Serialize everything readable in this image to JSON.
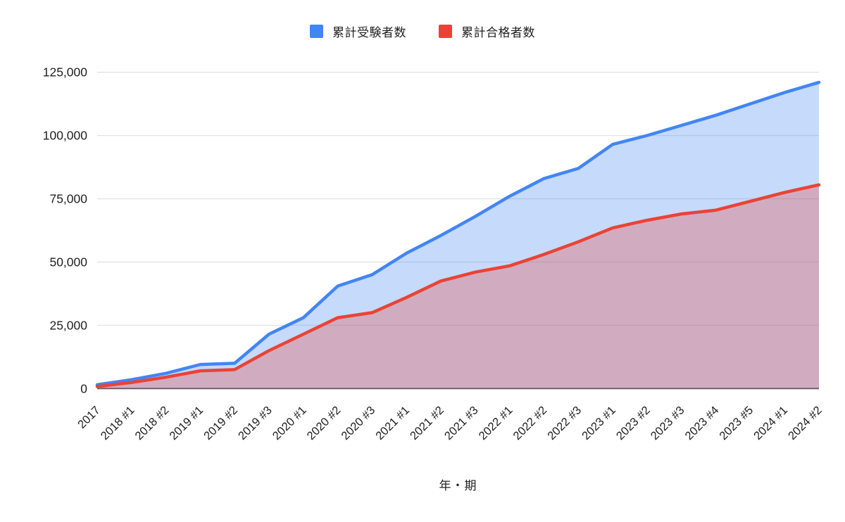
{
  "legend": {
    "items": [
      {
        "label": "累計受験者数",
        "color": "#4285F4"
      },
      {
        "label": "累計合格者数",
        "color": "#EA4335"
      }
    ]
  },
  "chart_data": {
    "type": "area",
    "title": "",
    "xlabel": "年・期",
    "ylabel": "",
    "ylim": [
      0,
      125000
    ],
    "y_ticks": [
      0,
      25000,
      50000,
      75000,
      100000,
      125000
    ],
    "y_tick_labels": [
      "0",
      "25,000",
      "50,000",
      "75,000",
      "100,000",
      "125,000"
    ],
    "grid": true,
    "legend_position": "top",
    "categories": [
      "2017",
      "2018 #1",
      "2018 #2",
      "2019 #1",
      "2019 #2",
      "2019 #3",
      "2020 #1",
      "2020 #2",
      "2020 #3",
      "2021 #1",
      "2021 #2",
      "2021 #3",
      "2022 #1",
      "2022 #2",
      "2022 #3",
      "2023 #1",
      "2023 #2",
      "2023 #3",
      "2023 #4",
      "2023 #5",
      "2024 #1",
      "2024 #2"
    ],
    "series": [
      {
        "name": "累計受験者数",
        "color": "#4285F4",
        "fill_opacity": 0.3,
        "values": [
          1500,
          3500,
          6000,
          9500,
          10000,
          21500,
          28000,
          40500,
          45000,
          53500,
          60500,
          68000,
          76000,
          83000,
          87000,
          96500,
          100000,
          104000,
          108000,
          112500,
          117000,
          121000
        ]
      },
      {
        "name": "累計合格者数",
        "color": "#EA4335",
        "fill_opacity": 0.3,
        "values": [
          800,
          2400,
          4500,
          7000,
          7500,
          15000,
          21500,
          28000,
          30000,
          36000,
          42500,
          46000,
          48500,
          53000,
          58000,
          63500,
          66500,
          69000,
          70500,
          74000,
          77500,
          80500
        ]
      }
    ],
    "colors": {
      "grid_line": "#e3e3e3",
      "axis_baseline": "#616161",
      "tick_text": "#1f1f1f"
    }
  }
}
